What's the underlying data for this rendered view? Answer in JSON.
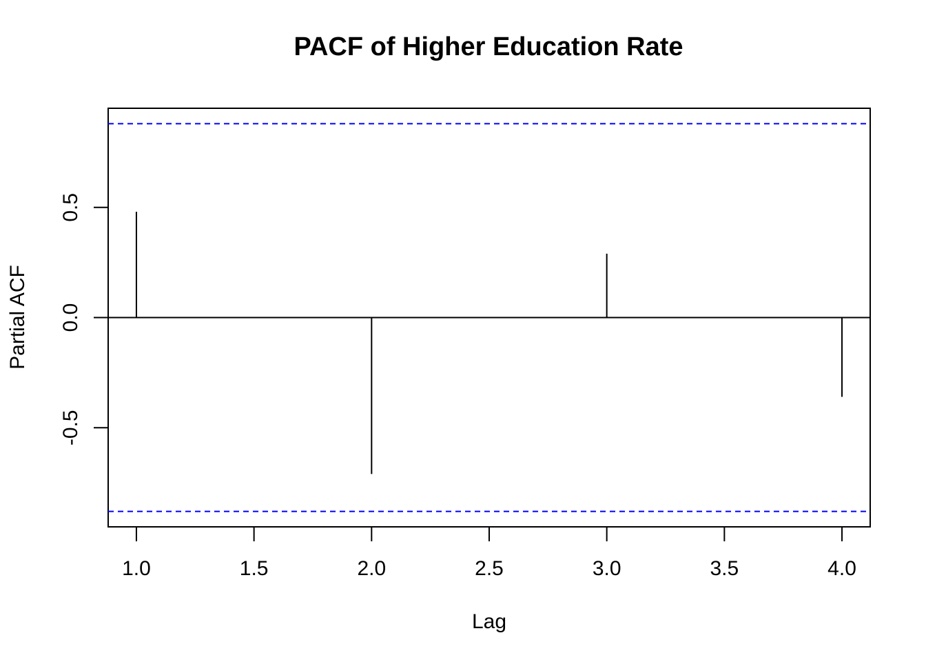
{
  "chart_data": {
    "type": "bar",
    "title": "PACF of Higher Education Rate",
    "xlabel": "Lag",
    "ylabel": "Partial ACF",
    "x": [
      1,
      2,
      3,
      4
    ],
    "values": [
      0.48,
      -0.71,
      0.29,
      -0.36
    ],
    "xlim": [
      0.88,
      4.12
    ],
    "ylim": [
      -0.95,
      0.95
    ],
    "x_ticks": [
      1.0,
      1.5,
      2.0,
      2.5,
      3.0,
      3.5,
      4.0
    ],
    "x_tick_labels": [
      "1.0",
      "1.5",
      "2.0",
      "2.5",
      "3.0",
      "3.5",
      "4.0"
    ],
    "y_ticks": [
      -0.5,
      0.0,
      0.5
    ],
    "y_tick_labels": [
      "-0.5",
      "0.0",
      "0.5"
    ],
    "confidence_bounds": [
      0.88,
      -0.88
    ],
    "confidence_color": "#0000ff",
    "bar_color": "#000000",
    "grid": false
  }
}
